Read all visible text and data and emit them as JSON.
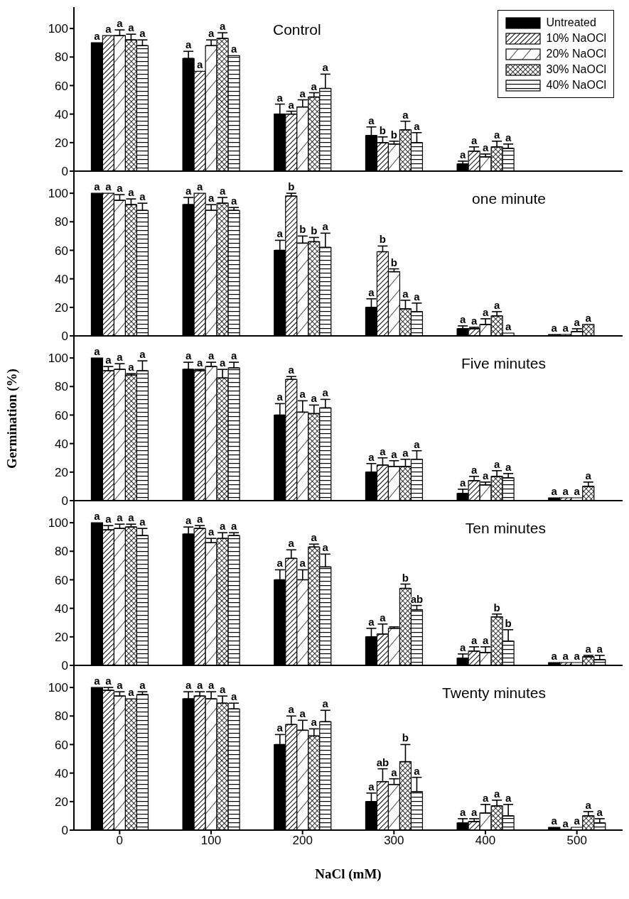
{
  "chart_data": [
    {
      "type": "bar",
      "title": "Control",
      "categories": [
        "0",
        "100",
        "200",
        "300",
        "400",
        "500"
      ],
      "ylim": [
        0,
        115
      ],
      "yticks": [
        0,
        20,
        40,
        60,
        80,
        100
      ],
      "tick_labels": "y",
      "legend": "top right",
      "series": [
        {
          "name": "Untreated",
          "color": "#000000",
          "values": [
            90,
            79,
            40,
            25,
            5,
            null
          ],
          "errors": [
            null,
            5,
            7,
            6,
            2,
            null
          ],
          "value_labels": [
            "a",
            "a",
            "a",
            "a",
            "a",
            null
          ]
        },
        {
          "name": "10% NaOCl",
          "color": "#000000",
          "values": [
            95,
            70,
            40,
            20,
            14,
            null
          ],
          "errors": [
            null,
            null,
            2,
            4,
            3,
            null
          ],
          "value_labels": [
            "a",
            "a",
            "a",
            "b",
            "a",
            null
          ]
        },
        {
          "name": "20% NaOCl",
          "color": "#000000",
          "values": [
            95,
            88,
            45,
            19,
            10,
            null
          ],
          "errors": [
            4,
            4,
            5,
            2,
            2,
            null
          ],
          "value_labels": [
            "a",
            "a",
            "a",
            "b",
            "a",
            null
          ]
        },
        {
          "name": "30%  NaOCl",
          "color": "#000000",
          "values": [
            92,
            93,
            52,
            29,
            17,
            null
          ],
          "errors": [
            4,
            4,
            3,
            6,
            4,
            null
          ],
          "value_labels": [
            "a",
            "a",
            "a",
            "a",
            "a",
            null
          ]
        },
        {
          "name": "40% NaOCl",
          "color": "#000000",
          "values": [
            88,
            81,
            58,
            20,
            16,
            null
          ],
          "errors": [
            4,
            null,
            10,
            7,
            3,
            null
          ],
          "value_labels": [
            "a",
            "a",
            "a",
            "a",
            "a",
            null
          ]
        }
      ]
    },
    {
      "type": "bar",
      "title": "one minute",
      "categories": [
        "0",
        "100",
        "200",
        "300",
        "400",
        "500"
      ],
      "ylim": [
        0,
        115
      ],
      "yticks": [
        0,
        20,
        40,
        60,
        80,
        100
      ],
      "tick_labels": "y",
      "series": [
        {
          "color": "#000000",
          "values": [
            100,
            92,
            60,
            20,
            5,
            1
          ],
          "errors": [
            null,
            5,
            7,
            6,
            2,
            null
          ],
          "value_labels": [
            "a",
            "a",
            "a",
            "a",
            "a",
            "a"
          ]
        },
        {
          "color": "#000000",
          "values": [
            100,
            100,
            98,
            59,
            5,
            1
          ],
          "errors": [
            null,
            null,
            2,
            4,
            1,
            null
          ],
          "value_labels": [
            "a",
            "a",
            "b",
            "b",
            "a",
            "a"
          ]
        },
        {
          "color": "#000000",
          "values": [
            95,
            88,
            65,
            45,
            8,
            3
          ],
          "errors": [
            4,
            4,
            5,
            2,
            4,
            2
          ],
          "value_labels": [
            "a",
            "a",
            "b",
            "b",
            "a",
            "a"
          ]
        },
        {
          "color": "#000000",
          "values": [
            92,
            93,
            66,
            19,
            14,
            8
          ],
          "errors": [
            4,
            4,
            3,
            6,
            3,
            null
          ],
          "value_labels": [
            "a",
            "a",
            "b",
            "a",
            "a",
            "a"
          ]
        },
        {
          "color": "#000000",
          "values": [
            88,
            88,
            62,
            17,
            2,
            null
          ],
          "errors": [
            5,
            2,
            10,
            6,
            null,
            null
          ],
          "value_labels": [
            "a",
            "a",
            "a",
            "a",
            "a",
            null
          ]
        }
      ]
    },
    {
      "type": "bar",
      "title": "Five minutes",
      "ylabel": "Germination (%)",
      "categories": [
        "0",
        "100",
        "200",
        "300",
        "400",
        "500"
      ],
      "ylim": [
        0,
        115
      ],
      "yticks": [
        0,
        20,
        40,
        60,
        80,
        100
      ],
      "tick_labels": "y",
      "series": [
        {
          "color": "#000000",
          "values": [
            100,
            92,
            60,
            20,
            5,
            2
          ],
          "errors": [
            null,
            5,
            8,
            6,
            3,
            null
          ],
          "value_labels": [
            "a",
            "a",
            "a",
            "a",
            "a",
            "a"
          ]
        },
        {
          "color": "#000000",
          "values": [
            91,
            91,
            85,
            25,
            14,
            2
          ],
          "errors": [
            3,
            1,
            2,
            5,
            3,
            null
          ],
          "value_labels": [
            "a",
            "a",
            "a",
            "a",
            "a",
            "a"
          ]
        },
        {
          "color": "#000000",
          "values": [
            92,
            94,
            62,
            24,
            11,
            2
          ],
          "errors": [
            4,
            3,
            8,
            4,
            2,
            null
          ],
          "value_labels": [
            "a",
            "a",
            "a",
            "a",
            "a",
            "a"
          ]
        },
        {
          "color": "#000000",
          "values": [
            88,
            86,
            61,
            24,
            17,
            10
          ],
          "errors": [
            1,
            6,
            6,
            5,
            4,
            3
          ],
          "value_labels": [
            "a",
            "a",
            "a",
            "a",
            "a",
            "a"
          ]
        },
        {
          "color": "#000000",
          "values": [
            91,
            93,
            65,
            29,
            16,
            null
          ],
          "errors": [
            7,
            4,
            6,
            6,
            3,
            null
          ],
          "value_labels": [
            "a",
            "a",
            "a",
            "a",
            "a",
            null
          ]
        }
      ]
    },
    {
      "type": "bar",
      "title": "Ten minutes",
      "categories": [
        "0",
        "100",
        "200",
        "300",
        "400",
        "500"
      ],
      "ylim": [
        0,
        115
      ],
      "yticks": [
        0,
        20,
        40,
        60,
        80,
        100
      ],
      "tick_labels": "y",
      "series": [
        {
          "color": "#000000",
          "values": [
            100,
            92,
            60,
            20,
            5,
            2
          ],
          "errors": [
            null,
            5,
            7,
            6,
            3,
            null
          ],
          "value_labels": [
            "a",
            "a",
            "a",
            "a",
            "a",
            "a"
          ]
        },
        {
          "color": "#000000",
          "values": [
            95,
            96,
            75,
            22,
            10,
            2
          ],
          "errors": [
            3,
            2,
            6,
            7,
            3,
            null
          ],
          "value_labels": [
            "a",
            "a",
            "a",
            "a",
            "a",
            "a"
          ]
        },
        {
          "color": "#000000",
          "values": [
            96,
            86,
            60,
            26,
            9,
            2
          ],
          "errors": [
            3,
            3,
            7,
            1,
            4,
            null
          ],
          "value_labels": [
            "a",
            "a",
            "a",
            null,
            "a",
            "a"
          ]
        },
        {
          "color": "#000000",
          "values": [
            97,
            89,
            83,
            54,
            34,
            6
          ],
          "errors": [
            2,
            4,
            2,
            3,
            2,
            1
          ],
          "value_labels": [
            "a",
            "a",
            "a",
            "b",
            "b",
            "a"
          ]
        },
        {
          "color": "#000000",
          "values": [
            91,
            91,
            69,
            39,
            17,
            4
          ],
          "errors": [
            5,
            2,
            9,
            3,
            8,
            3
          ],
          "value_labels": [
            "a",
            "a",
            "a",
            "ab",
            "b",
            "a"
          ]
        }
      ]
    },
    {
      "type": "bar",
      "title": "Twenty minutes",
      "xlabel": "NaCl (mM)",
      "categories": [
        "0",
        "100",
        "200",
        "300",
        "400",
        "500"
      ],
      "ylim": [
        0,
        115
      ],
      "yticks": [
        0,
        20,
        40,
        60,
        80,
        100
      ],
      "series": [
        {
          "color": "#000000",
          "values": [
            100,
            92,
            60,
            20,
            5,
            2
          ],
          "errors": [
            null,
            5,
            7,
            6,
            3,
            null
          ],
          "value_labels": [
            "a",
            "a",
            "a",
            "a",
            "a",
            "a"
          ]
        },
        {
          "color": "#000000",
          "values": [
            98,
            94,
            74,
            34,
            6,
            0
          ],
          "errors": [
            2,
            3,
            6,
            9,
            2,
            null
          ],
          "value_labels": [
            "a",
            "a",
            "a",
            "ab",
            "a",
            "a"
          ]
        },
        {
          "color": "#000000",
          "values": [
            94,
            92,
            70,
            32,
            12,
            2
          ],
          "errors": [
            3,
            5,
            7,
            4,
            6,
            null
          ],
          "value_labels": [
            "a",
            "a",
            "a",
            "a",
            "a",
            "a"
          ]
        },
        {
          "color": "#000000",
          "values": [
            92,
            89,
            66,
            48,
            17,
            10
          ],
          "errors": [
            null,
            5,
            5,
            12,
            4,
            3
          ],
          "value_labels": [
            "a",
            "a",
            "a",
            "b",
            "a",
            "a"
          ]
        },
        {
          "color": "#000000",
          "values": [
            95,
            85,
            76,
            27,
            10,
            5
          ],
          "errors": [
            2,
            4,
            8,
            10,
            8,
            3
          ],
          "value_labels": [
            "a",
            "a",
            "a",
            "a",
            "a",
            "a"
          ]
        }
      ]
    }
  ]
}
